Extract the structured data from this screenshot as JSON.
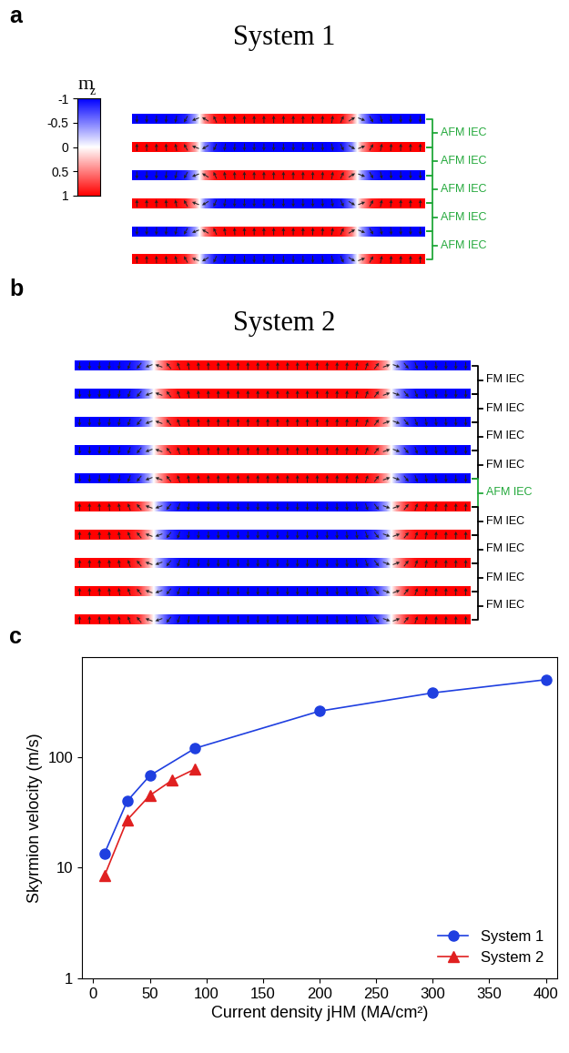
{
  "panels": [
    {
      "label": "a",
      "title": "System 1",
      "colorbar": {
        "label": {
          "text": "m",
          "subscript": "z"
        },
        "range": [
          -1,
          1
        ],
        "ticks": [
          -1,
          -0.5,
          0,
          0.5,
          1
        ]
      },
      "layers": [
        {
          "outer_mz": -1
        },
        {
          "outer_mz": 1
        },
        {
          "outer_mz": -1
        },
        {
          "outer_mz": 1
        },
        {
          "outer_mz": -1
        },
        {
          "outer_mz": 1
        }
      ],
      "couplings": [
        "AFM IEC",
        "AFM IEC",
        "AFM IEC",
        "AFM IEC",
        "AFM IEC"
      ]
    },
    {
      "label": "b",
      "title": "System 2",
      "layers": [
        {
          "outer_mz": -1
        },
        {
          "outer_mz": -1
        },
        {
          "outer_mz": -1
        },
        {
          "outer_mz": -1
        },
        {
          "outer_mz": -1
        },
        {
          "outer_mz": 1
        },
        {
          "outer_mz": 1
        },
        {
          "outer_mz": 1
        },
        {
          "outer_mz": 1
        },
        {
          "outer_mz": 1
        }
      ],
      "couplings": [
        "FM IEC",
        "FM IEC",
        "FM IEC",
        "FM IEC",
        "AFM IEC",
        "FM IEC",
        "FM IEC",
        "FM IEC",
        "FM IEC"
      ]
    },
    {
      "label": "c"
    }
  ],
  "chart_data": {
    "type": "line",
    "xlabel": "Current density jHM (MA/cm²)",
    "ylabel": "Skyrmion velocity (m/s)",
    "series": [
      {
        "name": "System 1",
        "color": "#1f3fe0",
        "marker": "circle",
        "x": [
          10,
          30,
          50,
          90,
          200,
          300,
          400
        ],
        "values": [
          13.5,
          40,
          68,
          120,
          260,
          380,
          500
        ]
      },
      {
        "name": "System 2",
        "color": "#e02020",
        "marker": "triangle",
        "x": [
          10,
          30,
          50,
          70,
          90
        ],
        "values": [
          8.5,
          27,
          45,
          62,
          78
        ]
      }
    ],
    "xlim": [
      -10,
      410
    ],
    "xticks": [
      0,
      50,
      100,
      150,
      200,
      250,
      300,
      350,
      400
    ],
    "ylim": [
      1,
      800
    ],
    "yticks": [
      1,
      10,
      100
    ],
    "log": "y",
    "legend": "lower right"
  }
}
